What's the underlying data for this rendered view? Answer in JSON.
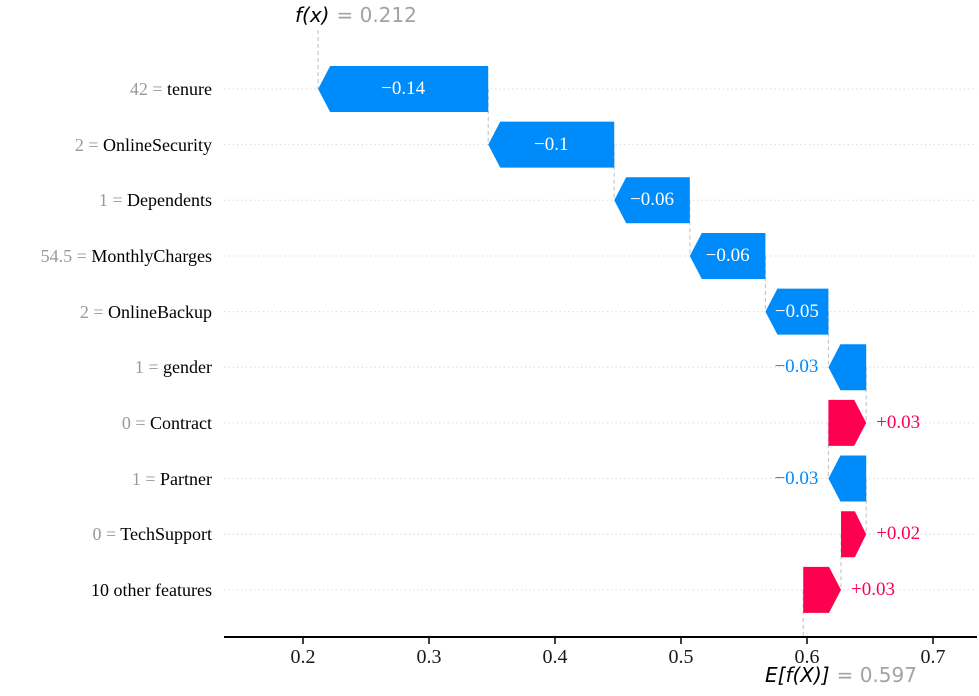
{
  "header": {
    "fx_name": "f(x)",
    "fx_eq": "= 0.212"
  },
  "footer": {
    "ef_name": "E[f(X)]",
    "ef_eq": "= 0.597"
  },
  "colors": {
    "positive": "#ff0051",
    "negative": "#008bfb",
    "inside_label": "#ffffff",
    "muted_value": "#999999",
    "grid_horizontal": "#dcdcdc",
    "grid_vertical": "#c8c8c8",
    "axis": "#000000"
  },
  "chart_data": {
    "type": "waterfall",
    "title": "f(x) = 0.212",
    "base_label": "E[f(X)] = 0.597",
    "fx": 0.212,
    "base_value": 0.597,
    "x_tick_values": [
      0.2,
      0.3,
      0.4,
      0.5,
      0.6,
      0.7
    ],
    "x_tick_labels": [
      "0.2",
      "0.3",
      "0.4",
      "0.5",
      "0.6",
      "0.7"
    ],
    "rows": [
      {
        "feature": "tenure",
        "value_prefix": "42 = ",
        "shap": -0.14,
        "display": "−0.14",
        "start": 0.347,
        "end": 0.212,
        "label_placement": "inside"
      },
      {
        "feature": "OnlineSecurity",
        "value_prefix": "2 = ",
        "shap": -0.1,
        "display": "−0.1",
        "start": 0.447,
        "end": 0.347,
        "label_placement": "inside"
      },
      {
        "feature": "Dependents",
        "value_prefix": "1 = ",
        "shap": -0.06,
        "display": "−0.06",
        "start": 0.507,
        "end": 0.447,
        "label_placement": "inside"
      },
      {
        "feature": "MonthlyCharges",
        "value_prefix": "54.5 = ",
        "shap": -0.06,
        "display": "−0.06",
        "start": 0.567,
        "end": 0.507,
        "label_placement": "inside"
      },
      {
        "feature": "OnlineBackup",
        "value_prefix": "2 = ",
        "shap": -0.05,
        "display": "−0.05",
        "start": 0.617,
        "end": 0.567,
        "label_placement": "inside"
      },
      {
        "feature": "gender",
        "value_prefix": "1 = ",
        "shap": -0.03,
        "display": "−0.03",
        "start": 0.647,
        "end": 0.617,
        "label_placement": "outside"
      },
      {
        "feature": "Contract",
        "value_prefix": "0 = ",
        "shap": 0.03,
        "display": "+0.03",
        "start": 0.617,
        "end": 0.647,
        "label_placement": "outside"
      },
      {
        "feature": "Partner",
        "value_prefix": "1 = ",
        "shap": -0.03,
        "display": "−0.03",
        "start": 0.647,
        "end": 0.617,
        "label_placement": "outside"
      },
      {
        "feature": "TechSupport",
        "value_prefix": "0 = ",
        "shap": 0.02,
        "display": "+0.02",
        "start": 0.627,
        "end": 0.647,
        "label_placement": "outside"
      },
      {
        "feature": "10 other features",
        "value_prefix": "",
        "shap": 0.03,
        "display": "+0.03",
        "start": 0.597,
        "end": 0.627,
        "label_placement": "outside"
      }
    ]
  }
}
